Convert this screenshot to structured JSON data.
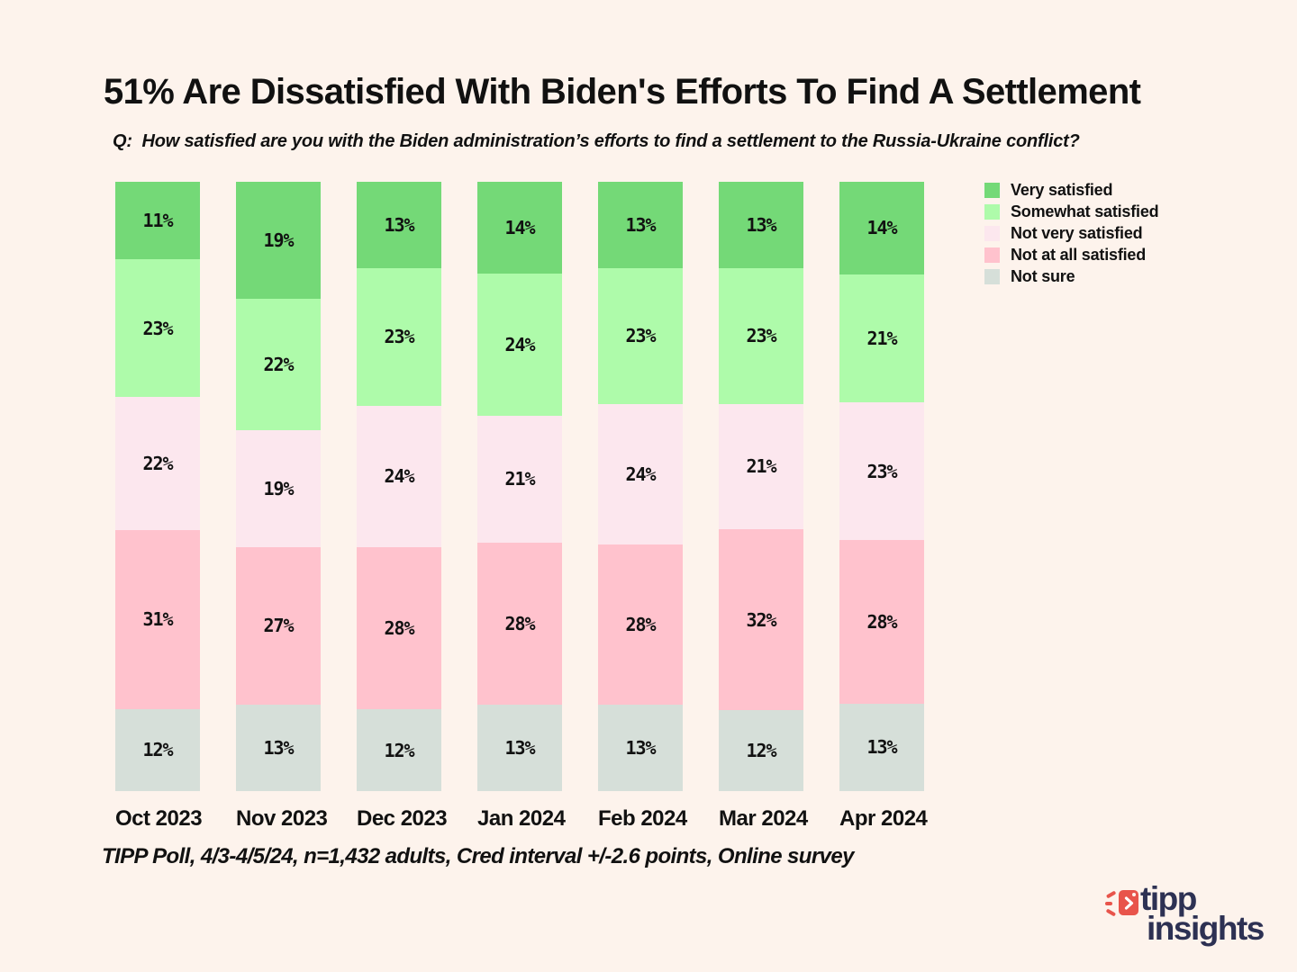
{
  "page": {
    "background": "#fdf3ec",
    "text_color": "#111111"
  },
  "header": {
    "title": "51% Are Dissatisfied With Biden's Efforts To Find A Settlement",
    "question": "Q:  How satisfied are you with the Biden administration’s efforts to find a settlement to the Russia-Ukraine conflict?"
  },
  "chart_data": {
    "type": "bar",
    "variant": "stacked-percent-column",
    "value_suffix": "%",
    "grid": false,
    "legend_position": "top-right",
    "categories": [
      "Oct 2023",
      "Nov 2023",
      "Dec 2023",
      "Jan 2024",
      "Feb 2024",
      "Mar 2024",
      "Apr 2024"
    ],
    "series": [
      {
        "name": "Very satisfied",
        "color": "#74d977",
        "values": [
          11,
          19,
          13,
          14,
          13,
          13,
          14
        ]
      },
      {
        "name": "Somewhat satisfied",
        "color": "#aefbaa",
        "values": [
          23,
          22,
          23,
          24,
          23,
          23,
          21
        ]
      },
      {
        "name": "Not very satisfied",
        "color": "#fce7ee",
        "values": [
          22,
          19,
          24,
          21,
          24,
          21,
          23
        ]
      },
      {
        "name": "Not at all satisfied",
        "color": "#ffc2cd",
        "values": [
          31,
          27,
          28,
          28,
          28,
          32,
          28
        ]
      },
      {
        "name": "Not sure",
        "color": "#d6dfd9",
        "values": [
          12,
          13,
          12,
          13,
          13,
          12,
          13
        ]
      }
    ],
    "footnote": "TIPP Poll, 4/3-4/5/24, n=1,432 adults, Cred interval +/-2.6 points, Online survey"
  },
  "branding": {
    "logo_text_line1": "tipp",
    "logo_text_line2": "insights",
    "logo_icon": "tipp-arrow-icon",
    "colors": {
      "navy": "#2d3153",
      "coral": "#e8544b"
    }
  }
}
